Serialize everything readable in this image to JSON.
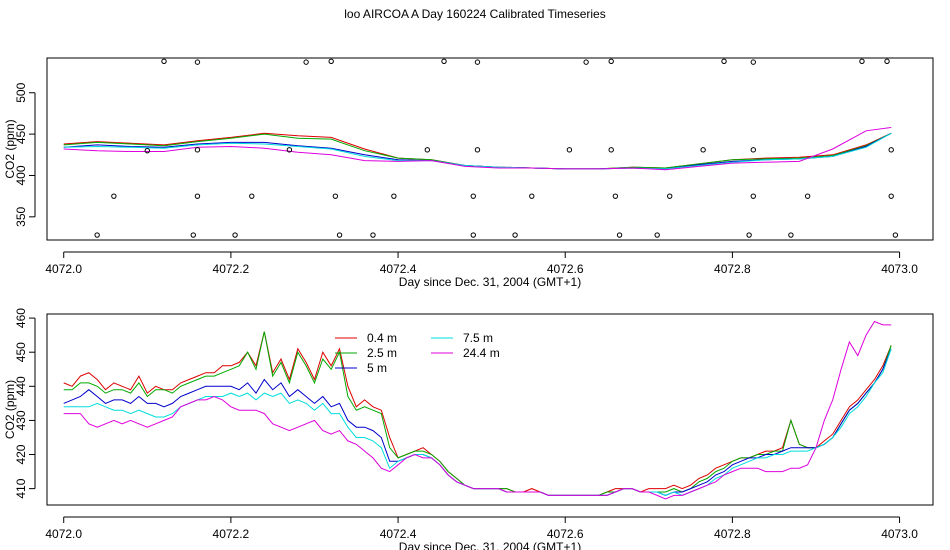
{
  "title": "loo AIRCOA A  Day 160224  Calibrated Timeseries",
  "chart_data": [
    {
      "type": "line",
      "xlabel": "Day since Dec. 31, 2004 (GMT+1)",
      "ylabel": "CO2 (ppm)",
      "xlim": [
        4071.98,
        4073.04
      ],
      "ylim": [
        322,
        542
      ],
      "xticks": [
        "4072.0",
        "4072.2",
        "4072.4",
        "4072.6",
        "4072.8",
        "4073.0"
      ],
      "yticks": [
        "350",
        "400",
        "450",
        "500"
      ],
      "x": [
        4072.0,
        4072.04,
        4072.08,
        4072.12,
        4072.16,
        4072.2,
        4072.24,
        4072.28,
        4072.32,
        4072.36,
        4072.4,
        4072.44,
        4072.48,
        4072.52,
        4072.56,
        4072.6,
        4072.64,
        4072.68,
        4072.72,
        4072.76,
        4072.8,
        4072.84,
        4072.88,
        4072.92,
        4072.96,
        4072.99
      ],
      "series": [
        {
          "name": "0.4 m",
          "color": "#dd0000",
          "values": [
            438,
            441,
            439,
            437,
            442,
            446,
            451,
            448,
            446,
            432,
            421,
            419,
            412,
            410,
            409,
            408,
            408,
            410,
            409,
            414,
            419,
            421,
            422,
            425,
            437,
            451
          ]
        },
        {
          "name": "2.5 m",
          "color": "#00aa00",
          "values": [
            437,
            440,
            438,
            436,
            441,
            445,
            450,
            445,
            444,
            430,
            421,
            419,
            412,
            410,
            409,
            408,
            408,
            410,
            409,
            414,
            419,
            420,
            421,
            424,
            436,
            451
          ]
        },
        {
          "name": "5 m",
          "color": "#0000cc",
          "values": [
            434,
            437,
            435,
            434,
            438,
            440,
            440,
            436,
            433,
            425,
            419,
            418,
            412,
            410,
            409,
            408,
            408,
            409,
            408,
            413,
            417,
            419,
            420,
            423,
            435,
            451
          ]
        },
        {
          "name": "7.5 m",
          "color": "#00dddd",
          "values": [
            434,
            435,
            434,
            433,
            437,
            439,
            438,
            435,
            432,
            423,
            418,
            418,
            412,
            410,
            409,
            408,
            408,
            409,
            408,
            412,
            416,
            419,
            420,
            423,
            434,
            451
          ]
        },
        {
          "name": "24.4 m",
          "color": "#dd00dd",
          "values": [
            432,
            430,
            429,
            429,
            434,
            435,
            433,
            428,
            425,
            418,
            417,
            418,
            411,
            409,
            409,
            408,
            408,
            409,
            407,
            411,
            415,
            416,
            417,
            432,
            454,
            458
          ]
        }
      ],
      "scatter": {
        "name": "calibration points",
        "points": [
          [
            4072.04,
            328
          ],
          [
            4072.06,
            375
          ],
          [
            4072.1,
            430
          ],
          [
            4072.12,
            538
          ],
          [
            4072.155,
            328
          ],
          [
            4072.16,
            375
          ],
          [
            4072.16,
            431
          ],
          [
            4072.16,
            537
          ],
          [
            4072.205,
            328
          ],
          [
            4072.225,
            375
          ],
          [
            4072.27,
            431
          ],
          [
            4072.29,
            537
          ],
          [
            4072.32,
            538
          ],
          [
            4072.325,
            375
          ],
          [
            4072.33,
            328
          ],
          [
            4072.37,
            328
          ],
          [
            4072.395,
            375
          ],
          [
            4072.435,
            431
          ],
          [
            4072.455,
            538
          ],
          [
            4072.49,
            328
          ],
          [
            4072.49,
            375
          ],
          [
            4072.495,
            431
          ],
          [
            4072.495,
            537
          ],
          [
            4072.54,
            328
          ],
          [
            4072.56,
            375
          ],
          [
            4072.605,
            431
          ],
          [
            4072.625,
            537
          ],
          [
            4072.655,
            538
          ],
          [
            4072.655,
            431
          ],
          [
            4072.66,
            375
          ],
          [
            4072.665,
            328
          ],
          [
            4072.71,
            328
          ],
          [
            4072.725,
            375
          ],
          [
            4072.765,
            431
          ],
          [
            4072.79,
            538
          ],
          [
            4072.82,
            328
          ],
          [
            4072.825,
            375
          ],
          [
            4072.825,
            431
          ],
          [
            4072.825,
            537
          ],
          [
            4072.87,
            328
          ],
          [
            4072.89,
            375
          ],
          [
            4072.955,
            538
          ],
          [
            4072.985,
            538
          ],
          [
            4072.99,
            431
          ],
          [
            4072.99,
            375
          ],
          [
            4072.995,
            328
          ]
        ]
      }
    },
    {
      "type": "line",
      "xlabel": "Day since Dec. 31, 2004 (GMT+1)",
      "ylabel": "CO2 (ppm)",
      "xlim": [
        4071.98,
        4073.04
      ],
      "ylim": [
        405.2,
        461.2
      ],
      "xticks": [
        "4072.0",
        "4072.2",
        "4072.4",
        "4072.6",
        "4072.8",
        "4073.0"
      ],
      "yticks": [
        "410",
        "420",
        "430",
        "440",
        "450",
        "460"
      ],
      "legend": "top-left",
      "x": [
        4072.0,
        4072.01,
        4072.02,
        4072.03,
        4072.04,
        4072.05,
        4072.06,
        4072.07,
        4072.08,
        4072.09,
        4072.1,
        4072.11,
        4072.12,
        4072.13,
        4072.14,
        4072.15,
        4072.16,
        4072.17,
        4072.18,
        4072.19,
        4072.2,
        4072.21,
        4072.22,
        4072.23,
        4072.24,
        4072.25,
        4072.26,
        4072.27,
        4072.28,
        4072.29,
        4072.3,
        4072.31,
        4072.32,
        4072.33,
        4072.34,
        4072.35,
        4072.36,
        4072.37,
        4072.38,
        4072.39,
        4072.4,
        4072.41,
        4072.42,
        4072.43,
        4072.44,
        4072.45,
        4072.46,
        4072.47,
        4072.48,
        4072.49,
        4072.5,
        4072.51,
        4072.52,
        4072.53,
        4072.54,
        4072.55,
        4072.56,
        4072.57,
        4072.58,
        4072.59,
        4072.6,
        4072.61,
        4072.62,
        4072.63,
        4072.64,
        4072.65,
        4072.66,
        4072.67,
        4072.68,
        4072.69,
        4072.7,
        4072.71,
        4072.72,
        4072.73,
        4072.74,
        4072.75,
        4072.76,
        4072.77,
        4072.78,
        4072.79,
        4072.8,
        4072.81,
        4072.82,
        4072.83,
        4072.84,
        4072.85,
        4072.86,
        4072.87,
        4072.88,
        4072.89,
        4072.9,
        4072.91,
        4072.92,
        4072.93,
        4072.94,
        4072.95,
        4072.96,
        4072.97,
        4072.98,
        4072.99
      ],
      "series": [
        {
          "name": "0.4 m",
          "color": "#dd0000",
          "values": [
            441,
            440,
            443,
            444,
            442,
            439,
            441,
            440,
            439,
            443,
            438,
            440,
            439,
            439,
            441,
            442,
            443,
            444,
            444,
            446,
            446,
            447,
            450,
            446,
            456,
            444,
            448,
            442,
            451,
            447,
            442,
            450,
            446,
            451,
            440,
            434,
            436,
            434,
            433,
            425,
            419,
            420,
            421,
            422,
            420,
            418,
            415,
            413,
            411,
            410,
            410,
            410,
            410,
            410,
            409,
            409,
            410,
            409,
            408,
            408,
            408,
            408,
            408,
            408,
            408,
            409,
            410,
            410,
            410,
            409,
            410,
            410,
            410,
            411,
            410,
            411,
            413,
            414,
            416,
            417,
            418,
            419,
            419,
            420,
            421,
            421,
            422,
            430,
            423,
            422,
            422,
            424,
            426,
            430,
            434,
            436,
            439,
            442,
            446,
            452
          ]
        },
        {
          "name": "2.5 m",
          "color": "#00aa00",
          "values": [
            439,
            439,
            441,
            441,
            440,
            438,
            439,
            439,
            438,
            441,
            437,
            439,
            439,
            438,
            440,
            441,
            442,
            443,
            443,
            444,
            445,
            446,
            450,
            445,
            456,
            443,
            447,
            441,
            450,
            446,
            441,
            448,
            445,
            450,
            437,
            433,
            434,
            433,
            432,
            422,
            419,
            420,
            421,
            421,
            420,
            418,
            415,
            413,
            411,
            410,
            410,
            410,
            410,
            410,
            409,
            409,
            409,
            409,
            408,
            408,
            408,
            408,
            408,
            408,
            408,
            409,
            409,
            410,
            410,
            409,
            409,
            409,
            409,
            410,
            409,
            410,
            412,
            413,
            415,
            416,
            418,
            419,
            419,
            420,
            420,
            421,
            421,
            430,
            423,
            422,
            422,
            423,
            425,
            429,
            433,
            435,
            438,
            441,
            445,
            452
          ]
        },
        {
          "name": "5 m",
          "color": "#0000cc",
          "values": [
            435,
            436,
            437,
            439,
            437,
            435,
            436,
            436,
            435,
            437,
            435,
            435,
            434,
            435,
            437,
            438,
            439,
            440,
            440,
            440,
            440,
            439,
            441,
            438,
            442,
            439,
            441,
            437,
            439,
            437,
            435,
            437,
            434,
            435,
            430,
            428,
            428,
            427,
            425,
            418,
            418,
            419,
            420,
            420,
            419,
            417,
            414,
            412,
            411,
            410,
            410,
            410,
            410,
            409,
            409,
            409,
            409,
            409,
            408,
            408,
            408,
            408,
            408,
            408,
            408,
            408,
            409,
            410,
            410,
            409,
            409,
            409,
            408,
            409,
            409,
            410,
            411,
            412,
            414,
            415,
            417,
            418,
            419,
            419,
            420,
            420,
            421,
            422,
            422,
            422,
            422,
            423,
            425,
            429,
            433,
            435,
            438,
            441,
            445,
            451
          ]
        },
        {
          "name": "7.5 m",
          "color": "#00dddd",
          "values": [
            434,
            434,
            434,
            434,
            435,
            434,
            433,
            433,
            432,
            433,
            432,
            431,
            431,
            432,
            434,
            435,
            436,
            437,
            437,
            437,
            438,
            437,
            438,
            436,
            438,
            437,
            438,
            435,
            436,
            435,
            433,
            435,
            432,
            432,
            428,
            425,
            425,
            424,
            422,
            416,
            418,
            419,
            420,
            420,
            419,
            417,
            414,
            412,
            411,
            410,
            410,
            410,
            410,
            409,
            409,
            409,
            409,
            409,
            408,
            408,
            408,
            408,
            408,
            408,
            408,
            408,
            409,
            410,
            410,
            409,
            409,
            409,
            408,
            409,
            408,
            409,
            410,
            411,
            413,
            414,
            416,
            417,
            418,
            419,
            419,
            420,
            420,
            421,
            421,
            421,
            422,
            423,
            425,
            428,
            432,
            434,
            437,
            441,
            444,
            451
          ]
        },
        {
          "name": "24.4 m",
          "color": "#dd00dd",
          "values": [
            432,
            432,
            432,
            429,
            428,
            429,
            430,
            429,
            430,
            429,
            428,
            429,
            430,
            431,
            434,
            435,
            436,
            436,
            437,
            436,
            434,
            433,
            433,
            433,
            432,
            429,
            428,
            427,
            428,
            429,
            430,
            427,
            426,
            427,
            424,
            423,
            421,
            419,
            416,
            415,
            417,
            419,
            420,
            419,
            419,
            417,
            414,
            412,
            411,
            410,
            410,
            410,
            410,
            409,
            409,
            409,
            409,
            409,
            408,
            408,
            408,
            408,
            408,
            408,
            408,
            408,
            409,
            410,
            410,
            409,
            409,
            408,
            407,
            408,
            408,
            409,
            410,
            411,
            412,
            414,
            415,
            416,
            416,
            416,
            415,
            415,
            415,
            416,
            416,
            417,
            422,
            430,
            436,
            445,
            453,
            449,
            455,
            459,
            458,
            458
          ]
        }
      ]
    }
  ]
}
